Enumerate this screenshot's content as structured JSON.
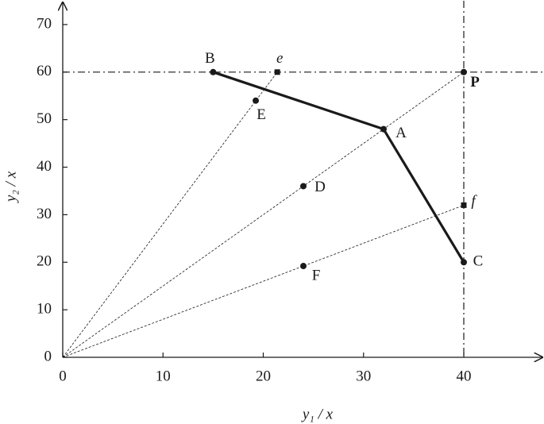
{
  "chart_data": {
    "type": "scatter",
    "xlabel": "y₁ / x",
    "ylabel": "y₂ / x",
    "xlim": [
      0,
      48
    ],
    "ylim": [
      0,
      75
    ],
    "xticks": [
      0,
      10,
      20,
      30,
      40
    ],
    "yticks": [
      0,
      10,
      20,
      30,
      40,
      50,
      60,
      70
    ],
    "labels": [
      "B",
      "A",
      "C",
      "P",
      "E",
      "D",
      "F",
      "e",
      "f"
    ],
    "x": [
      15,
      32,
      40,
      40,
      19.25,
      24,
      24,
      21.4,
      40
    ],
    "y": [
      60,
      48,
      20,
      60,
      54,
      36,
      19.2,
      60,
      32
    ],
    "markers": [
      "circle",
      "circle",
      "circle",
      "circle",
      "circle",
      "circle",
      "circle",
      "square",
      "square"
    ],
    "hlines": [
      60
    ],
    "vlines": [
      40
    ],
    "color": "#1a1a1a"
  }
}
